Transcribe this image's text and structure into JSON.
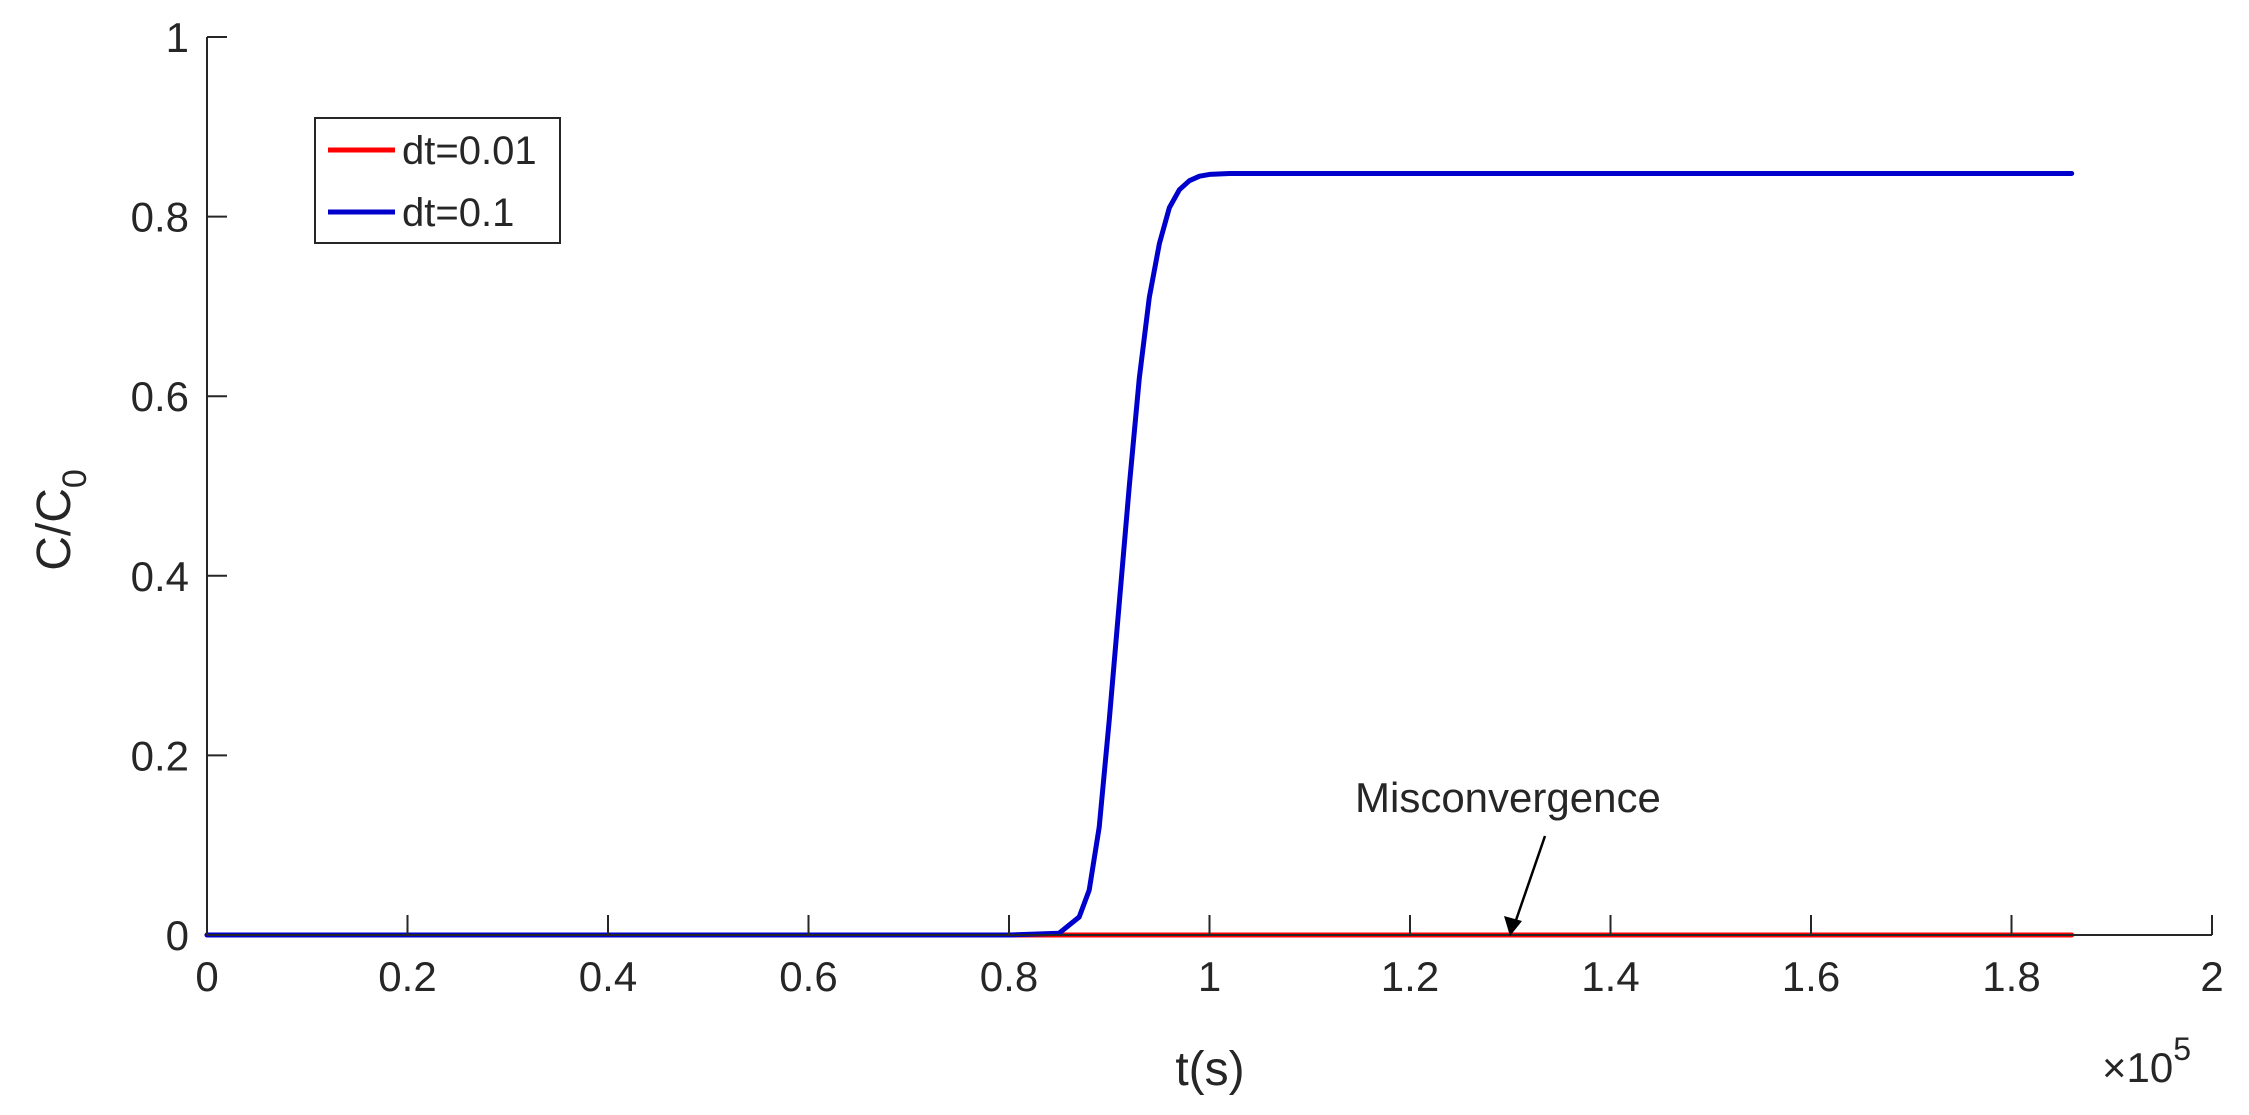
{
  "chart_data": {
    "type": "line",
    "xlabel": "t(s)",
    "ylabel": "C/C",
    "ylabel_sub": "0",
    "x_exponent_base": "×10",
    "x_exponent_power": "5",
    "xlim": [
      0,
      2
    ],
    "ylim": [
      0,
      1
    ],
    "x_ticks": [
      0,
      0.2,
      0.4,
      0.6,
      0.8,
      1,
      1.2,
      1.4,
      1.6,
      1.8,
      2
    ],
    "x_tick_labels": [
      "0",
      "0.2",
      "0.4",
      "0.6",
      "0.8",
      "1",
      "1.2",
      "1.4",
      "1.6",
      "1.8",
      "2"
    ],
    "y_ticks": [
      0,
      0.2,
      0.4,
      0.6,
      0.8,
      1
    ],
    "y_tick_labels": [
      "0",
      "0.2",
      "0.4",
      "0.6",
      "0.8",
      "1"
    ],
    "grid": false,
    "legend_placement": "top-left",
    "series": [
      {
        "name": "dt=0.01",
        "color": "#ff0000",
        "x": [
          0,
          0.85,
          1.0,
          1.2,
          1.4,
          1.6,
          1.86
        ],
        "y": [
          0,
          0,
          0,
          0,
          0,
          0,
          0
        ]
      },
      {
        "name": "dt=0.1",
        "color": "#0000cc",
        "x": [
          0,
          0.8,
          0.85,
          0.87,
          0.88,
          0.89,
          0.9,
          0.91,
          0.92,
          0.93,
          0.94,
          0.95,
          0.96,
          0.97,
          0.98,
          0.99,
          1.0,
          1.02,
          1.05,
          1.2,
          1.5,
          1.86
        ],
        "y": [
          0,
          0,
          0.002,
          0.02,
          0.05,
          0.12,
          0.24,
          0.37,
          0.5,
          0.62,
          0.71,
          0.77,
          0.81,
          0.83,
          0.84,
          0.845,
          0.847,
          0.848,
          0.848,
          0.848,
          0.848,
          0.848
        ]
      }
    ],
    "annotations": [
      {
        "text": "Misconvergence",
        "arrow_to": {
          "x": 1.3,
          "y": 0
        }
      }
    ]
  }
}
